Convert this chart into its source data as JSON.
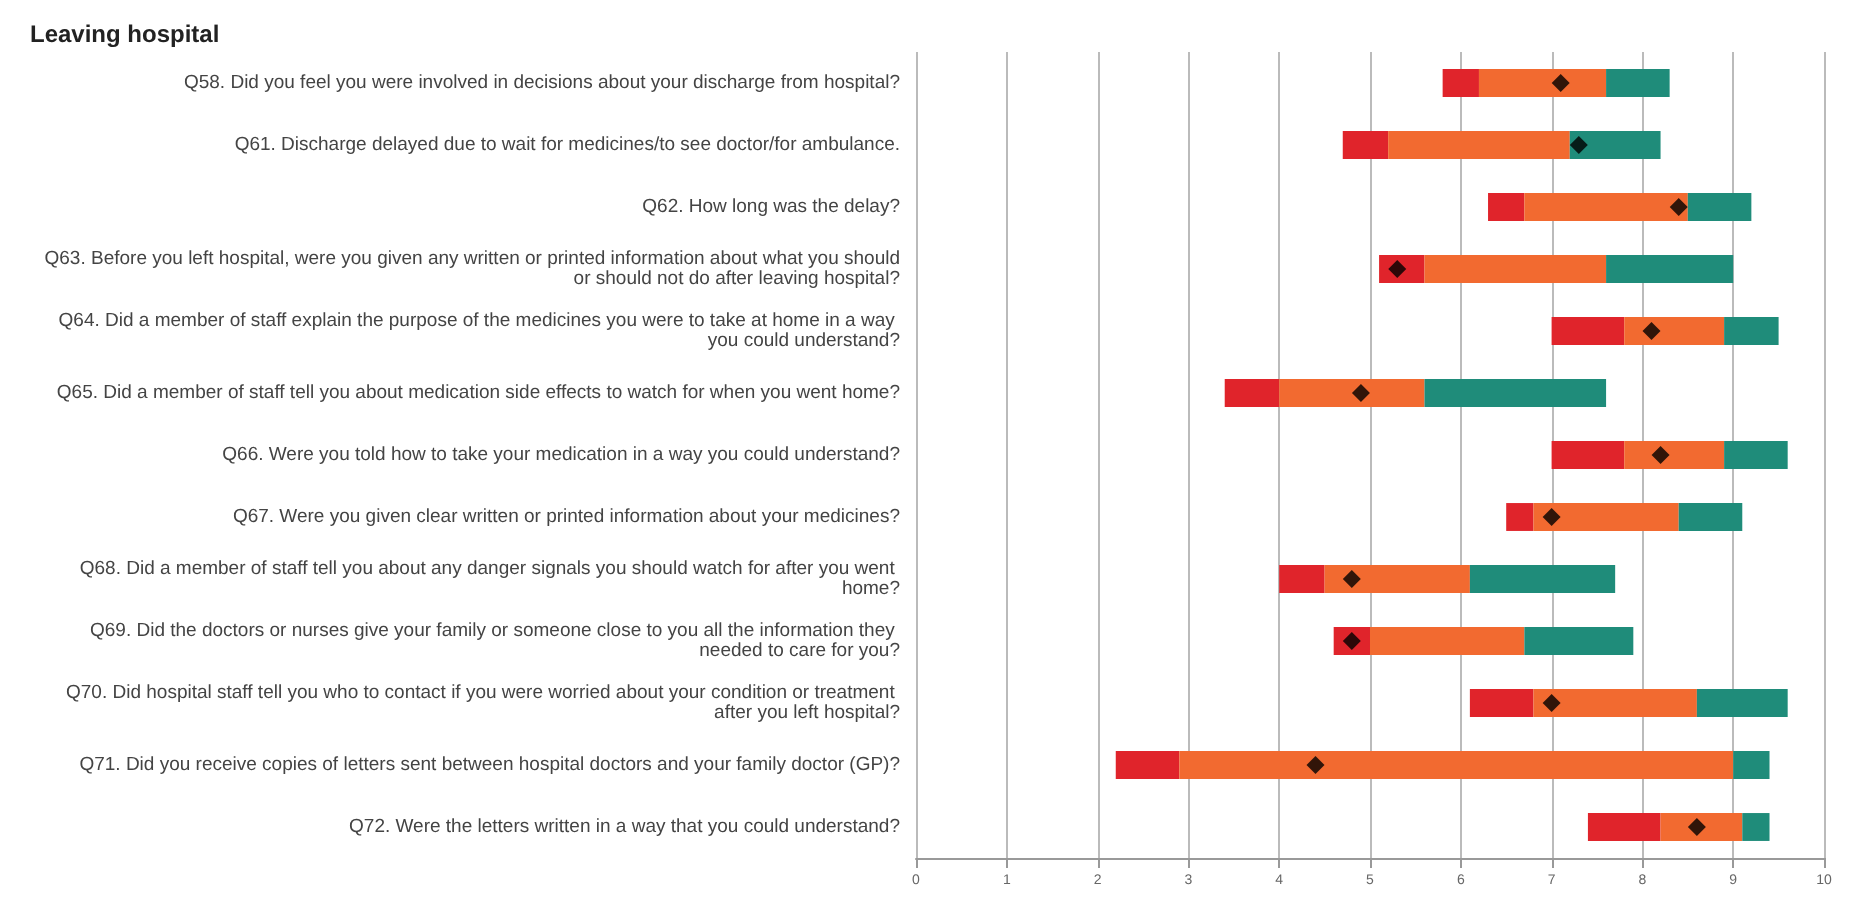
{
  "chart_data": {
    "type": "bar",
    "orientation": "horizontal",
    "title": "Leaving hospital",
    "categories": [
      "Q58. Did you feel you were involved in decisions about your discharge from hospital?",
      "Q61. Discharge delayed due to wait for medicines/to see doctor/for ambulance.",
      "Q62. How long was the delay?",
      "Q63. Before you left hospital, were you given any written or printed information about what you should or should not do after leaving hospital?",
      "Q64. Did a member of staff explain the purpose of the medicines you were to take at home in a way you could understand?",
      "Q65. Did a member of staff tell you about medication side effects to watch for when you went home?",
      "Q66. Were you told how to take your medication in a way you could understand?",
      "Q67. Were you given clear written or printed information about your medicines?",
      "Q68. Did a member of staff tell you about any danger signals you should watch for after you went home?",
      "Q69. Did the doctors or nurses give your family or someone close to you all the information they needed to care for you?",
      "Q70. Did hospital staff tell you who to contact if you were worried about your condition or treatment after you left hospital?",
      "Q71. Did you receive copies of letters sent between hospital doctors and your family doctor (GP)?",
      "Q72. Were the letters written in a way that you could understand?"
    ],
    "series": [
      {
        "color": "#e0242b",
        "base": [
          5.8,
          4.7,
          6.3,
          5.1,
          7.0,
          3.4,
          7.0,
          6.5,
          4.0,
          4.6,
          6.1,
          2.2,
          7.4
        ],
        "values": [
          0.4,
          0.5,
          0.4,
          0.5,
          0.8,
          0.6,
          0.8,
          0.3,
          0.5,
          0.4,
          0.7,
          0.7,
          0.8
        ]
      },
      {
        "color": "#f26a30",
        "base": [
          6.2,
          5.2,
          6.7,
          5.6,
          7.8,
          4.0,
          7.8,
          6.8,
          4.5,
          5.0,
          6.8,
          2.9,
          8.2
        ],
        "values": [
          1.4,
          2.0,
          1.8,
          2.0,
          1.1,
          1.6,
          1.1,
          1.6,
          1.6,
          1.7,
          1.8,
          6.1,
          0.9
        ]
      },
      {
        "color": "#1f8c7a",
        "base": [
          7.6,
          7.2,
          8.5,
          7.6,
          8.9,
          5.6,
          8.9,
          8.4,
          6.1,
          6.7,
          8.6,
          9.0,
          9.1
        ],
        "values": [
          0.7,
          1.0,
          0.7,
          1.4,
          0.6,
          2.0,
          0.7,
          0.7,
          1.6,
          1.2,
          1.0,
          0.4,
          0.3
        ]
      },
      {
        "type": "scatter",
        "color": "#000000",
        "values": [
          7.1,
          7.3,
          8.4,
          5.3,
          8.1,
          4.9,
          8.2,
          7.0,
          4.8,
          4.8,
          7.0,
          4.4,
          8.6
        ]
      }
    ],
    "xlim": [
      0,
      10
    ],
    "xticks": [
      0,
      1,
      2,
      3,
      4,
      5,
      6,
      7,
      8,
      9,
      10
    ],
    "grid": "x",
    "marker": "diamond"
  }
}
